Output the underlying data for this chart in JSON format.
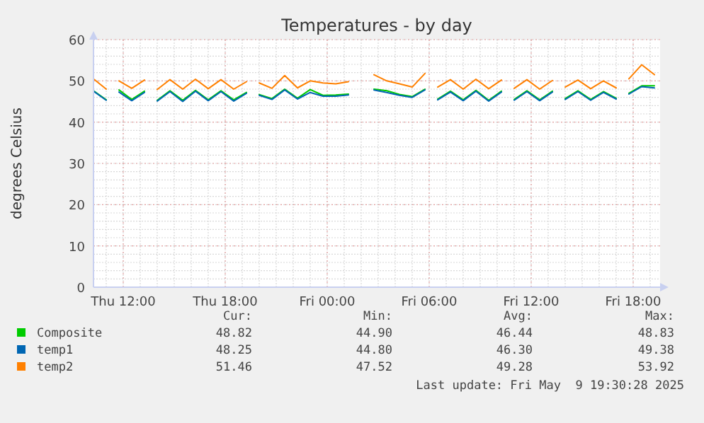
{
  "chart_data": {
    "type": "line",
    "title": "Temperatures - by day",
    "ylabel": "degrees Celsius",
    "x": [
      "2025-05-08T10:15",
      "2025-05-08T11:00",
      "2025-05-08T11:10",
      "2025-05-08T11:45",
      "2025-05-08T12:30",
      "2025-05-08T13:15",
      "2025-05-08T13:40",
      "2025-05-08T14:00",
      "2025-05-08T14:45",
      "2025-05-08T15:30",
      "2025-05-08T16:15",
      "2025-05-08T17:00",
      "2025-05-08T17:45",
      "2025-05-08T18:30",
      "2025-05-08T19:15",
      "2025-05-08T19:45",
      "2025-05-08T20:00",
      "2025-05-08T20:45",
      "2025-05-08T21:30",
      "2025-05-08T22:15",
      "2025-05-08T23:00",
      "2025-05-08T23:45",
      "2025-05-09T00:30",
      "2025-05-09T01:15",
      "2025-05-09T01:55",
      "2025-05-09T02:45",
      "2025-05-09T03:30",
      "2025-05-09T04:15",
      "2025-05-09T05:00",
      "2025-05-09T05:45",
      "2025-05-09T06:00",
      "2025-05-09T06:30",
      "2025-05-09T07:15",
      "2025-05-09T08:00",
      "2025-05-09T08:45",
      "2025-05-09T09:30",
      "2025-05-09T10:15",
      "2025-05-09T10:55",
      "2025-05-09T11:00",
      "2025-05-09T11:45",
      "2025-05-09T12:30",
      "2025-05-09T13:15",
      "2025-05-09T13:55",
      "2025-05-09T14:00",
      "2025-05-09T14:45",
      "2025-05-09T15:30",
      "2025-05-09T16:15",
      "2025-05-09T17:00",
      "2025-05-09T17:15",
      "2025-05-09T17:45",
      "2025-05-09T18:30",
      "2025-05-09T19:15"
    ],
    "series": [
      {
        "name": "Composite",
        "color": "#00cc00",
        "values": [
          47.6,
          45.4,
          null,
          47.8,
          45.5,
          47.5,
          null,
          45.3,
          47.6,
          45.3,
          47.7,
          45.4,
          47.6,
          45.4,
          47.2,
          null,
          46.7,
          45.7,
          48.0,
          45.8,
          47.9,
          46.5,
          46.6,
          46.8,
          null,
          48.0,
          47.6,
          46.7,
          46.2,
          48.0,
          null,
          45.6,
          47.5,
          45.4,
          47.7,
          45.3,
          47.5,
          null,
          45.5,
          47.6,
          45.4,
          47.5,
          null,
          45.7,
          47.6,
          45.5,
          47.4,
          45.8,
          null,
          47.0,
          48.8,
          48.8
        ]
      },
      {
        "name": "temp1",
        "color": "#0066b3",
        "values": [
          47.5,
          45.3,
          null,
          47.3,
          45.2,
          47.2,
          null,
          45.1,
          47.4,
          45.0,
          47.5,
          45.2,
          47.4,
          45.1,
          47.0,
          null,
          46.5,
          45.5,
          47.8,
          45.6,
          47.2,
          46.3,
          46.3,
          46.6,
          null,
          47.8,
          47.2,
          46.5,
          46.0,
          47.8,
          null,
          45.4,
          47.3,
          45.2,
          47.5,
          45.1,
          47.3,
          null,
          45.3,
          47.4,
          45.2,
          47.3,
          null,
          45.5,
          47.4,
          45.3,
          47.2,
          45.6,
          null,
          46.8,
          48.6,
          48.3
        ]
      },
      {
        "name": "temp2",
        "color": "#ff8000",
        "values": [
          50.5,
          48.0,
          null,
          50.0,
          48.2,
          50.2,
          null,
          47.9,
          50.3,
          48.0,
          50.4,
          48.1,
          50.3,
          48.0,
          49.8,
          null,
          49.5,
          48.2,
          51.3,
          48.3,
          50.0,
          49.5,
          49.3,
          49.8,
          null,
          51.5,
          50.0,
          49.3,
          48.5,
          51.8,
          null,
          48.5,
          50.3,
          48.0,
          50.4,
          48.1,
          50.2,
          null,
          48.2,
          50.3,
          48.0,
          50.1,
          null,
          48.5,
          50.2,
          48.1,
          50.0,
          48.3,
          null,
          50.5,
          53.9,
          51.5
        ]
      }
    ],
    "xlim": [
      "2025-05-08T10:15",
      "2025-05-09T19:35"
    ],
    "xticks": [
      {
        "value": "2025-05-08T12:00",
        "label": "Thu 12:00"
      },
      {
        "value": "2025-05-08T18:00",
        "label": "Thu 18:00"
      },
      {
        "value": "2025-05-09T00:00",
        "label": "Fri 00:00"
      },
      {
        "value": "2025-05-09T06:00",
        "label": "Fri 06:00"
      },
      {
        "value": "2025-05-09T12:00",
        "label": "Fri 12:00"
      },
      {
        "value": "2025-05-09T18:00",
        "label": "Fri 18:00"
      }
    ],
    "ylim": [
      0,
      60
    ],
    "yticks": [
      0,
      10,
      20,
      30,
      40,
      50,
      60
    ],
    "grid": true,
    "legend": "bottom",
    "annotations": [
      "Cur:",
      "Min:",
      "Avg:",
      "Max:",
      "48.82",
      "44.90",
      "46.44",
      "48.83",
      "48.25",
      "44.80",
      "46.30",
      "49.38",
      "51.46",
      "47.52",
      "49.28",
      "53.92",
      "Last update: Fri May  9 19:30:28 2025"
    ]
  }
}
